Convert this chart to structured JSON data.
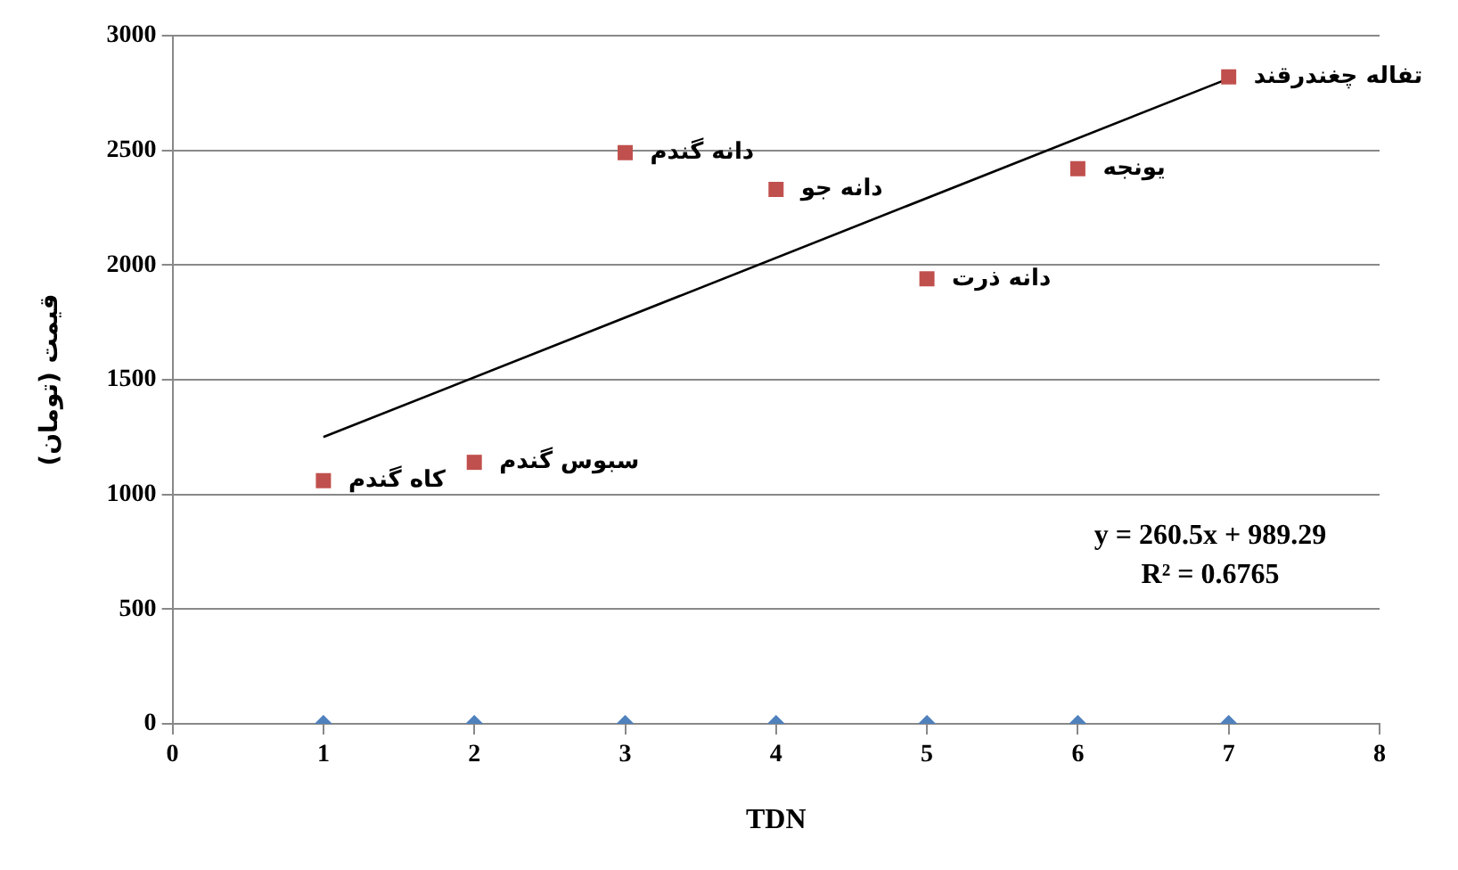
{
  "chart_data": {
    "type": "scatter",
    "xlabel": "TDN",
    "ylabel": "قیمت (تومان)",
    "xlim": [
      0,
      8
    ],
    "xticks": [
      0,
      1,
      2,
      3,
      4,
      5,
      6,
      7,
      8
    ],
    "ylim": [
      0,
      3000
    ],
    "yticks": [
      0,
      500,
      1000,
      1500,
      2000,
      2500,
      3000
    ],
    "grid": "y",
    "legend": false,
    "series": [
      {
        "type": "scatter",
        "marker": "square",
        "color": "#c0504d",
        "x": [
          1,
          2,
          3,
          4,
          5,
          6,
          7
        ],
        "values": [
          1060,
          1140,
          2490,
          2330,
          1940,
          2420,
          2820
        ]
      },
      {
        "type": "scatter",
        "marker": "diamond",
        "color": "#4f81bd",
        "x": [
          1,
          2,
          3,
          4,
          5,
          6,
          7
        ],
        "values": [
          0,
          0,
          0,
          0,
          0,
          0,
          0
        ]
      },
      {
        "type": "line",
        "marker": "none",
        "color": "#000000",
        "x": [
          1,
          7
        ],
        "values": [
          1250,
          2813
        ]
      }
    ],
    "annotations": [
      {
        "text": "کاه گندم",
        "x": 1,
        "y": 1060
      },
      {
        "text": "سبوس گندم",
        "x": 2,
        "y": 1140
      },
      {
        "text": "دانه گندم",
        "x": 3,
        "y": 2490
      },
      {
        "text": "دانه جو",
        "x": 4,
        "y": 2330
      },
      {
        "text": "دانه ذرت",
        "x": 5,
        "y": 1940
      },
      {
        "text": "یونجه",
        "x": 6,
        "y": 2420
      },
      {
        "text": "تفاله چغندرقند",
        "x": 7,
        "y": 2820
      },
      "y = 260.5x + 989.29",
      "R² = 0.6765"
    ]
  }
}
